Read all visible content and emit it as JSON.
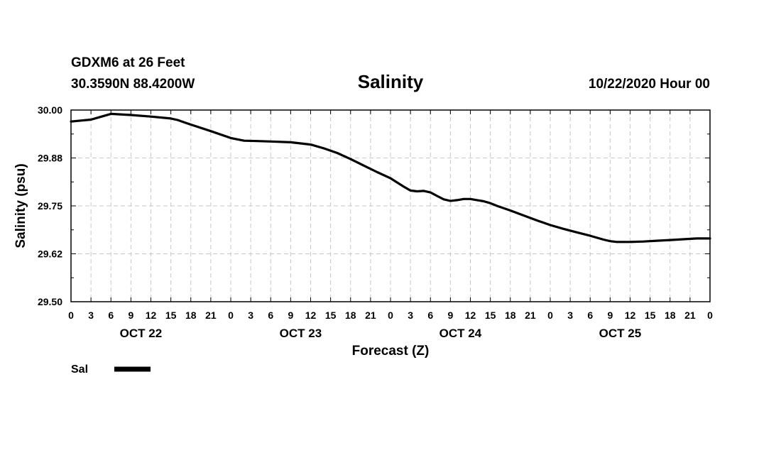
{
  "chart_data": {
    "type": "line",
    "title": "Salinity",
    "station_line": "GDXM6 at 26 Feet",
    "coords_line": "30.3590N 88.4200W",
    "run_time": "10/22/2020 Hour 00",
    "xlabel": "Forecast (Z)",
    "ylabel": "Salinity (psu)",
    "ylim": [
      29.5,
      30.0
    ],
    "xlim": [
      0,
      96
    ],
    "y_ticks": [
      "30.00",
      "29.88",
      "29.75",
      "29.62",
      "29.50"
    ],
    "x_tick_labels": [
      "0",
      "3",
      "6",
      "9",
      "12",
      "15",
      "18",
      "21",
      "0",
      "3",
      "6",
      "9",
      "12",
      "15",
      "18",
      "21",
      "0",
      "3",
      "6",
      "9",
      "12",
      "15",
      "18",
      "21",
      "0",
      "3",
      "6",
      "9",
      "12",
      "15",
      "18",
      "21",
      "0"
    ],
    "day_labels": [
      "OCT 22",
      "OCT 23",
      "OCT 24",
      "OCT 25"
    ],
    "grid": true,
    "legend_position": "bottom-left",
    "series": [
      {
        "name": "Sal",
        "color": "#000000",
        "x": [
          0,
          3,
          4,
          6,
          9,
          12,
          15,
          16,
          18,
          21,
          24,
          26,
          28,
          30,
          33,
          36,
          38,
          40,
          42,
          44,
          46,
          48,
          50,
          51,
          52,
          53,
          54,
          55,
          56,
          57,
          58,
          59,
          60,
          61,
          62,
          63,
          64,
          66,
          68,
          70,
          72,
          74,
          76,
          78,
          80,
          81,
          82,
          84,
          86,
          88,
          90,
          92,
          94,
          96
        ],
        "values": [
          29.97,
          29.975,
          29.98,
          29.99,
          29.987,
          29.983,
          29.978,
          29.974,
          29.962,
          29.945,
          29.927,
          29.92,
          29.919,
          29.918,
          29.916,
          29.91,
          29.9,
          29.888,
          29.872,
          29.855,
          29.838,
          29.822,
          29.8,
          29.79,
          29.788,
          29.789,
          29.785,
          29.776,
          29.767,
          29.763,
          29.765,
          29.768,
          29.768,
          29.765,
          29.762,
          29.757,
          29.75,
          29.738,
          29.725,
          29.712,
          29.7,
          29.69,
          29.681,
          29.672,
          29.662,
          29.658,
          29.656,
          29.656,
          29.657,
          29.659,
          29.661,
          29.663,
          29.665,
          29.665
        ]
      }
    ]
  }
}
